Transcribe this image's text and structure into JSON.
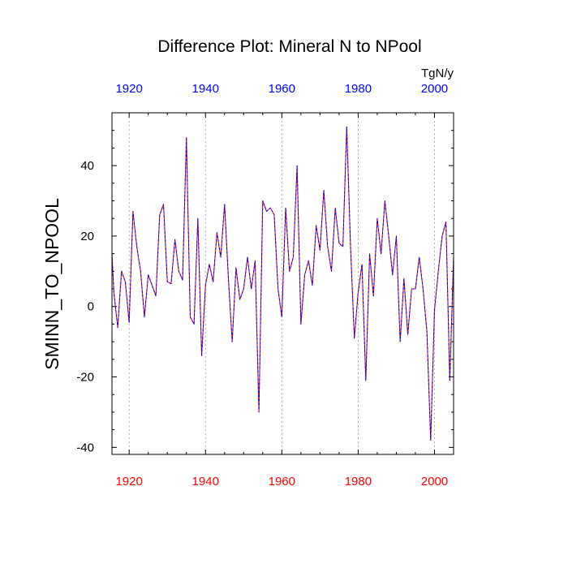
{
  "chart_data": {
    "type": "line",
    "title": "Difference Plot: Mineral N to NPool",
    "ylabel": "SMINN_TO_NPOOL",
    "units": "TgN/y",
    "xlim": [
      1915.5,
      2005
    ],
    "ylim": [
      -42,
      55
    ],
    "x_ticks": [
      1920,
      1940,
      1960,
      1980,
      2000
    ],
    "x_tick_labels": [
      "1920",
      "1940",
      "1960",
      "1980",
      "2000"
    ],
    "y_ticks": [
      -40,
      -20,
      0,
      20,
      40
    ],
    "y_tick_labels": [
      "-40",
      "-20",
      "0",
      "20",
      "40"
    ],
    "grid": "vertical dotted at major x ticks",
    "colors": {
      "bottom_tick_labels": "#ff0000",
      "top_tick_labels": "#0000ff",
      "series_a": "#ff0000",
      "series_b": "#0000ff"
    },
    "series": [
      {
        "name": "series-red",
        "style": "solid",
        "x": [
          1915.5,
          1916,
          1917,
          1918,
          1919,
          1920,
          1921,
          1922,
          1923,
          1924,
          1925,
          1926,
          1927,
          1928,
          1929,
          1930,
          1931,
          1932,
          1933,
          1934,
          1935,
          1936,
          1937,
          1938,
          1939,
          1940,
          1941,
          1942,
          1943,
          1944,
          1945,
          1946,
          1947,
          1948,
          1949,
          1950,
          1951,
          1952,
          1953,
          1954,
          1955,
          1956,
          1957,
          1958,
          1959,
          1960,
          1961,
          1962,
          1963,
          1964,
          1965,
          1966,
          1967,
          1968,
          1969,
          1970,
          1971,
          1972,
          1973,
          1974,
          1975,
          1976,
          1977,
          1978,
          1979,
          1980,
          1981,
          1982,
          1983,
          1984,
          1985,
          1986,
          1987,
          1988,
          1989,
          1990,
          1991,
          1992,
          1993,
          1994,
          1995,
          1996,
          1997,
          1998,
          1999,
          2000,
          2001,
          2002,
          2003,
          2004,
          2005
        ],
        "values": [
          15,
          4,
          -6,
          10,
          7,
          -4.5,
          27,
          17,
          10,
          -3,
          9,
          6,
          3,
          26,
          29,
          7,
          6.5,
          19,
          10,
          7.5,
          48,
          -3,
          -5,
          25,
          -14,
          6,
          12,
          7,
          21,
          14,
          29,
          8,
          -10,
          11,
          2,
          5,
          14,
          5,
          13,
          -30,
          30,
          27,
          28,
          26,
          5,
          -3,
          28,
          10,
          14,
          40,
          -5,
          9,
          13,
          6,
          23,
          16,
          33,
          17,
          10,
          28,
          18,
          17,
          51,
          17,
          -9,
          4,
          12,
          -21,
          15,
          3,
          25,
          15,
          30,
          20,
          9,
          20,
          -10,
          8,
          -8,
          5,
          5,
          14,
          5,
          -7,
          -38,
          -1,
          10,
          20,
          24,
          -21,
          14
        ]
      },
      {
        "name": "series-blue",
        "style": "dashed",
        "x": [
          1915.5,
          1916,
          1917,
          1918,
          1919,
          1920,
          1921,
          1922,
          1923,
          1924,
          1925,
          1926,
          1927,
          1928,
          1929,
          1930,
          1931,
          1932,
          1933,
          1934,
          1935,
          1936,
          1937,
          1938,
          1939,
          1940,
          1941,
          1942,
          1943,
          1944,
          1945,
          1946,
          1947,
          1948,
          1949,
          1950,
          1951,
          1952,
          1953,
          1954,
          1955,
          1956,
          1957,
          1958,
          1959,
          1960,
          1961,
          1962,
          1963,
          1964,
          1965,
          1966,
          1967,
          1968,
          1969,
          1970,
          1971,
          1972,
          1973,
          1974,
          1975,
          1976,
          1977,
          1978,
          1979,
          1980,
          1981,
          1982,
          1983,
          1984,
          1985,
          1986,
          1987,
          1988,
          1989,
          1990,
          1991,
          1992,
          1993,
          1994,
          1995,
          1996,
          1997,
          1998,
          1999,
          2000,
          2001,
          2002,
          2003,
          2004,
          2005
        ],
        "values": [
          15,
          4,
          -6,
          10,
          7,
          -4.5,
          27,
          17,
          10,
          -3,
          9,
          6,
          3,
          26,
          29,
          7,
          6.5,
          19,
          10,
          7.5,
          48,
          -3,
          -5,
          25,
          -14,
          6,
          12,
          7,
          21,
          14,
          29,
          8,
          -10,
          11,
          2,
          5,
          14,
          5,
          13,
          -30,
          30,
          27,
          28,
          26,
          5,
          -3,
          28,
          10,
          14,
          40,
          -5,
          9,
          13,
          6,
          23,
          16,
          33,
          17,
          10,
          28,
          18,
          17,
          51,
          17,
          -9,
          4,
          12,
          -21,
          15,
          3,
          25,
          15,
          30,
          20,
          9,
          20,
          -10,
          8,
          -8,
          5,
          5,
          14,
          5,
          -7,
          -38,
          -1,
          10,
          20,
          24,
          -21,
          14
        ]
      }
    ]
  }
}
